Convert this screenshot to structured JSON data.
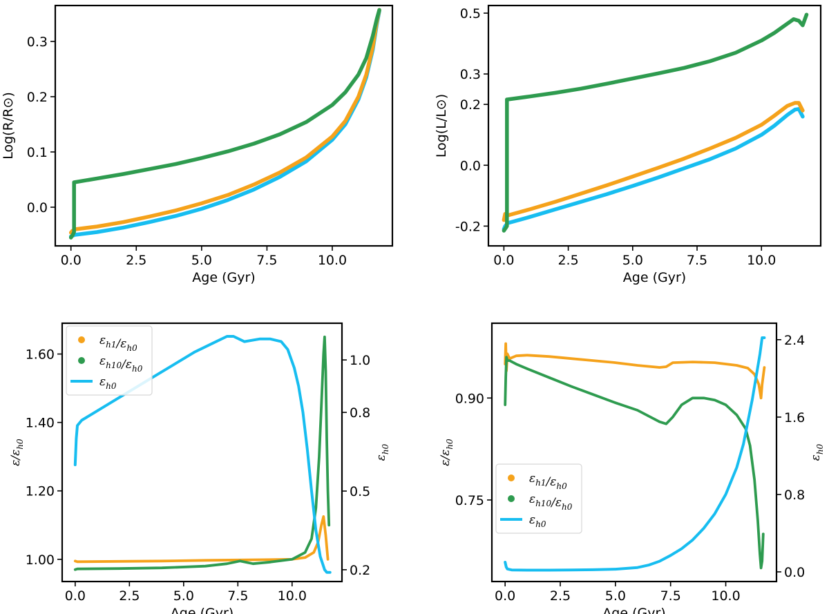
{
  "colors": {
    "orange": "#f5a21b",
    "green": "#2e9b4f",
    "blue": "#17bdf0"
  },
  "chart_data": [
    {
      "id": "radius",
      "type": "line",
      "xlabel": "Age (Gyr)",
      "ylabel": "Log(R/R⊙)",
      "xlim": [
        -0.6,
        12.3
      ],
      "ylim": [
        -0.07,
        0.365
      ],
      "xticks": [
        0.0,
        2.5,
        5.0,
        7.5,
        10.0
      ],
      "xtick_labels": [
        "0.0",
        "2.5",
        "5.0",
        "7.5",
        "10.0"
      ],
      "yticks": [
        0.0,
        0.1,
        0.2,
        0.3
      ],
      "ytick_labels": [
        "0.0",
        "0.1",
        "0.2",
        "0.3"
      ],
      "series": [
        {
          "name": "blue",
          "color": "#17bdf0",
          "x": [
            0.0,
            0.15,
            1,
            2,
            3,
            4,
            5,
            6,
            7,
            8,
            9,
            10,
            10.5,
            11,
            11.3,
            11.55,
            11.7,
            11.8
          ],
          "y": [
            -0.053,
            -0.05,
            -0.045,
            -0.037,
            -0.027,
            -0.016,
            -0.003,
            0.013,
            0.032,
            0.055,
            0.083,
            0.122,
            0.15,
            0.195,
            0.235,
            0.285,
            0.33,
            0.355
          ]
        },
        {
          "name": "orange",
          "color": "#f5a21b",
          "x": [
            0.0,
            0.05,
            0.15,
            1,
            2,
            3,
            4,
            5,
            6,
            7,
            8,
            9,
            10,
            10.5,
            11,
            11.3,
            11.55,
            11.7,
            11.8
          ],
          "y": [
            -0.046,
            -0.043,
            -0.04,
            -0.035,
            -0.027,
            -0.017,
            -0.006,
            0.007,
            0.022,
            0.041,
            0.063,
            0.09,
            0.128,
            0.156,
            0.2,
            0.24,
            0.29,
            0.335,
            0.357
          ]
        },
        {
          "name": "green",
          "color": "#2e9b4f",
          "x": [
            0.0,
            0.07,
            0.12,
            0.12,
            1,
            2,
            3,
            4,
            5,
            6,
            7,
            8,
            9,
            10,
            10.5,
            11,
            11.3,
            11.55,
            11.7,
            11.8
          ],
          "y": [
            -0.055,
            -0.05,
            -0.045,
            0.045,
            0.052,
            0.06,
            0.069,
            0.078,
            0.089,
            0.101,
            0.115,
            0.132,
            0.154,
            0.185,
            0.208,
            0.24,
            0.27,
            0.31,
            0.34,
            0.357
          ]
        }
      ]
    },
    {
      "id": "luminosity",
      "type": "line",
      "xlabel": "Age (Gyr)",
      "ylabel": "Log(L/L⊙)",
      "xlim": [
        -0.6,
        12.3
      ],
      "ylim": [
        -0.265,
        0.525
      ],
      "xticks": [
        0.0,
        2.5,
        5.0,
        7.5,
        10.0
      ],
      "xtick_labels": [
        "0.0",
        "2.5",
        "5.0",
        "7.5",
        "10.0"
      ],
      "yticks": [
        -0.2,
        0.0,
        0.2,
        0.3,
        0.5
      ],
      "ytick_labels": [
        "-0.2",
        "0.0",
        "0.2",
        "0.3",
        "0.5"
      ],
      "series": [
        {
          "name": "blue",
          "color": "#17bdf0",
          "x": [
            0.0,
            0.05,
            0.15,
            1,
            2,
            3,
            4,
            5,
            6,
            7,
            8,
            9,
            10,
            10.5,
            11,
            11.3,
            11.45,
            11.6
          ],
          "y": [
            -0.21,
            -0.2,
            -0.19,
            -0.17,
            -0.145,
            -0.12,
            -0.095,
            -0.068,
            -0.04,
            -0.01,
            0.02,
            0.055,
            0.1,
            0.13,
            0.165,
            0.183,
            0.185,
            0.16
          ]
        },
        {
          "name": "orange",
          "color": "#f5a21b",
          "x": [
            0.0,
            0.05,
            0.15,
            1,
            2,
            3,
            4,
            5,
            6,
            7,
            8,
            9,
            10,
            10.5,
            11,
            11.3,
            11.45,
            11.6
          ],
          "y": [
            -0.18,
            -0.16,
            -0.165,
            -0.145,
            -0.12,
            -0.093,
            -0.066,
            -0.037,
            -0.008,
            0.022,
            0.055,
            0.09,
            0.133,
            0.163,
            0.195,
            0.205,
            0.205,
            0.18
          ]
        },
        {
          "name": "green",
          "color": "#2e9b4f",
          "x": [
            0.0,
            0.08,
            0.12,
            0.12,
            1,
            2,
            3,
            4,
            5,
            6,
            7,
            8,
            9,
            10,
            10.5,
            11,
            11.25,
            11.45,
            11.6,
            11.75
          ],
          "y": [
            -0.215,
            -0.205,
            -0.2,
            0.216,
            0.226,
            0.238,
            0.252,
            0.268,
            0.285,
            0.302,
            0.32,
            0.342,
            0.37,
            0.41,
            0.435,
            0.465,
            0.48,
            0.475,
            0.46,
            0.495
          ]
        }
      ]
    },
    {
      "id": "ratio_mid",
      "type": "line",
      "xlabel": "Age (Gyr)",
      "ylabel": "ε/εh₀",
      "ylabel_right": "εh₀",
      "xlim": [
        -0.6,
        12.3
      ],
      "ylim": [
        0.935,
        1.69
      ],
      "ylim_right": [
        0.155,
        1.14
      ],
      "xticks": [
        0.0,
        2.5,
        5.0,
        7.5,
        10.0
      ],
      "xtick_labels": [
        "0.0",
        "2.5",
        "5.0",
        "7.5",
        "10.0"
      ],
      "yticks": [
        1.0,
        1.2,
        1.4,
        1.6
      ],
      "ytick_labels": [
        "1.00",
        "1.20",
        "1.40",
        "1.60"
      ],
      "yticks_right": [
        0.2,
        0.5,
        0.8,
        1.0
      ],
      "ytick_labels_right": [
        "0.2",
        "0.5",
        "0.8",
        "1.0"
      ],
      "legend": {
        "location": "upper-left",
        "entries": [
          {
            "label": "εh₁/εh₀",
            "marker": "dot",
            "color": "#f5a21b"
          },
          {
            "label": "εh₁₀/εh₀",
            "marker": "dot",
            "color": "#2e9b4f"
          },
          {
            "label": "εh₀",
            "marker": "line",
            "color": "#17bdf0"
          }
        ]
      },
      "series": [
        {
          "name": "orange",
          "axis": "left",
          "color": "#f5a21b",
          "x": [
            0.0,
            0.1,
            2,
            4,
            6,
            7.5,
            9,
            10,
            10.6,
            11.0,
            11.2,
            11.35,
            11.45,
            11.55,
            11.65
          ],
          "y": [
            0.995,
            0.993,
            0.994,
            0.995,
            0.997,
            0.998,
            0.999,
            1.0,
            1.005,
            1.02,
            1.05,
            1.1,
            1.125,
            1.07,
            1.0
          ]
        },
        {
          "name": "green",
          "axis": "left",
          "color": "#2e9b4f",
          "x": [
            0.0,
            0.1,
            2,
            4,
            6,
            7,
            7.6,
            8.2,
            9,
            10,
            10.6,
            10.9,
            11.1,
            11.25,
            11.35,
            11.45,
            11.5,
            11.55,
            11.6,
            11.65,
            11.7
          ],
          "y": [
            0.97,
            0.972,
            0.973,
            0.975,
            0.98,
            0.987,
            0.995,
            0.987,
            0.992,
            1.0,
            1.02,
            1.06,
            1.15,
            1.3,
            1.45,
            1.6,
            1.65,
            1.55,
            1.35,
            1.2,
            1.1
          ]
        },
        {
          "name": "blue",
          "axis": "right",
          "color": "#17bdf0",
          "x": [
            0.0,
            0.05,
            0.1,
            0.3,
            0.7,
            1.5,
            2.5,
            3.5,
            4.5,
            5.5,
            6.5,
            7.0,
            7.3,
            7.8,
            8.5,
            9.0,
            9.5,
            9.8,
            10.1,
            10.3,
            10.5,
            10.7,
            10.9,
            11.1,
            11.3,
            11.5,
            11.6,
            11.75
          ],
          "y": [
            0.6,
            0.7,
            0.75,
            0.77,
            0.79,
            0.83,
            0.88,
            0.93,
            0.98,
            1.03,
            1.07,
            1.09,
            1.09,
            1.07,
            1.08,
            1.08,
            1.07,
            1.04,
            0.97,
            0.9,
            0.8,
            0.66,
            0.5,
            0.35,
            0.25,
            0.2,
            0.19,
            0.19
          ]
        }
      ]
    },
    {
      "id": "ratio_center",
      "type": "line",
      "xlabel": "Age (Gyr)",
      "ylabel": "ε/εh₀",
      "ylabel_right": "εh₀",
      "xlim": [
        -0.6,
        12.3
      ],
      "ylim": [
        0.63,
        1.01
      ],
      "ylim_right": [
        -0.1,
        2.57
      ],
      "xticks": [
        0.0,
        2.5,
        5.0,
        7.5,
        10.0
      ],
      "xtick_labels": [
        "0.0",
        "2.5",
        "5.0",
        "7.5",
        "10.0"
      ],
      "yticks": [
        0.75,
        0.9
      ],
      "ytick_labels": [
        "0.75",
        "0.90"
      ],
      "yticks_right": [
        0.0,
        0.8,
        1.6,
        2.4
      ],
      "ytick_labels_right": [
        "0.0",
        "0.8",
        "1.6",
        "2.4"
      ],
      "legend": {
        "location": "lower-left",
        "entries": [
          {
            "label": "εh₁/εh₀",
            "marker": "dot",
            "color": "#f5a21b"
          },
          {
            "label": "εh₁₀/εh₀",
            "marker": "dot",
            "color": "#2e9b4f"
          },
          {
            "label": "εh₀",
            "marker": "line",
            "color": "#17bdf0"
          }
        ]
      },
      "series": [
        {
          "name": "orange",
          "axis": "left",
          "color": "#f5a21b",
          "x": [
            0.0,
            0.03,
            0.06,
            0.1,
            0.2,
            0.5,
            1.0,
            2,
            3,
            4,
            5,
            6,
            7,
            7.3,
            7.6,
            8.5,
            9.5,
            10.5,
            11.0,
            11.3,
            11.5,
            11.6,
            11.65,
            11.75
          ],
          "y": [
            0.95,
            0.98,
            0.94,
            0.965,
            0.958,
            0.962,
            0.963,
            0.961,
            0.958,
            0.955,
            0.952,
            0.948,
            0.945,
            0.946,
            0.952,
            0.953,
            0.952,
            0.948,
            0.944,
            0.935,
            0.92,
            0.9,
            0.92,
            0.945
          ]
        },
        {
          "name": "green",
          "axis": "left",
          "color": "#2e9b4f",
          "x": [
            0.0,
            0.03,
            0.06,
            0.1,
            0.2,
            0.5,
            1.0,
            2,
            3,
            4,
            5,
            6,
            7,
            7.3,
            7.6,
            8.0,
            8.5,
            9.0,
            9.5,
            10.0,
            10.5,
            10.9,
            11.1,
            11.3,
            11.45,
            11.55,
            11.6,
            11.65,
            11.7
          ],
          "y": [
            0.89,
            0.93,
            0.96,
            0.955,
            0.955,
            0.95,
            0.943,
            0.93,
            0.917,
            0.905,
            0.893,
            0.882,
            0.865,
            0.862,
            0.872,
            0.89,
            0.9,
            0.9,
            0.897,
            0.89,
            0.875,
            0.855,
            0.83,
            0.78,
            0.72,
            0.67,
            0.65,
            0.66,
            0.7
          ]
        },
        {
          "name": "blue",
          "axis": "right",
          "color": "#17bdf0",
          "x": [
            0.0,
            0.05,
            0.1,
            0.3,
            1,
            2,
            3,
            4,
            5,
            6,
            6.5,
            7.0,
            7.5,
            8.0,
            8.5,
            9.0,
            9.5,
            10.0,
            10.5,
            10.8,
            11.0,
            11.2,
            11.4,
            11.55,
            11.65,
            11.75
          ],
          "y": [
            0.1,
            0.05,
            0.03,
            0.02,
            0.018,
            0.018,
            0.02,
            0.022,
            0.028,
            0.045,
            0.07,
            0.11,
            0.17,
            0.24,
            0.33,
            0.45,
            0.6,
            0.8,
            1.08,
            1.32,
            1.55,
            1.78,
            2.05,
            2.25,
            2.42,
            2.42
          ]
        }
      ]
    }
  ]
}
